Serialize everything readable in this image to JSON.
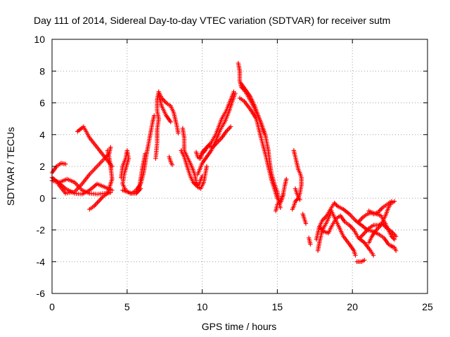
{
  "chart_data": {
    "type": "scatter",
    "title": "Day 111 of 2014, Sidereal Day-to-day VTEC variation (SDTVAR) for receiver sutm",
    "xlabel": "GPS time / hours",
    "ylabel": "SDTVAR / TECUs",
    "xlim": [
      0,
      25
    ],
    "ylim": [
      -6,
      10
    ],
    "x_ticks": [
      0,
      5,
      10,
      15,
      20,
      25
    ],
    "y_ticks": [
      -6,
      -4,
      -2,
      0,
      2,
      4,
      6,
      8,
      10
    ],
    "grid": true,
    "marker": "+",
    "color": "#ff0000",
    "tracks": [
      [
        [
          0.0,
          1.3
        ],
        [
          0.4,
          1.0
        ],
        [
          0.9,
          0.6
        ],
        [
          1.5,
          0.3
        ],
        [
          2.0,
          0.25
        ],
        [
          2.5,
          0.5
        ],
        [
          3.0,
          0.9
        ],
        [
          3.5,
          0.7
        ],
        [
          4.0,
          0.5
        ]
      ],
      [
        [
          0.0,
          1.6
        ],
        [
          0.3,
          2.0
        ],
        [
          0.6,
          2.2
        ],
        [
          0.9,
          2.15
        ]
      ],
      [
        [
          0.0,
          1.1
        ],
        [
          0.5,
          1.0
        ],
        [
          1.0,
          1.2
        ],
        [
          1.5,
          1.0
        ],
        [
          2.0,
          0.5
        ],
        [
          2.5,
          0.3
        ],
        [
          3.0,
          0.25
        ],
        [
          3.5,
          0.3
        ],
        [
          3.9,
          0.35
        ]
      ],
      [
        [
          0.4,
          0.9
        ],
        [
          0.9,
          0.3
        ],
        [
          1.5,
          0.4
        ],
        [
          2.0,
          0.9
        ],
        [
          2.5,
          1.5
        ],
        [
          3.0,
          2.0
        ],
        [
          3.5,
          2.5
        ],
        [
          3.8,
          2.8
        ],
        [
          3.9,
          3.2
        ]
      ],
      [
        [
          1.7,
          4.2
        ],
        [
          2.1,
          4.5
        ],
        [
          2.5,
          3.8
        ],
        [
          3.0,
          3.2
        ],
        [
          3.5,
          2.6
        ],
        [
          4.0,
          2.0
        ]
      ],
      [
        [
          2.5,
          -0.7
        ],
        [
          2.8,
          -0.5
        ],
        [
          3.1,
          -0.2
        ],
        [
          3.4,
          0.1
        ],
        [
          3.7,
          0.3
        ],
        [
          4.0,
          1.2
        ],
        [
          3.9,
          2.0
        ],
        [
          3.8,
          2.6
        ],
        [
          3.7,
          3.0
        ]
      ],
      [
        [
          4.6,
          1.3
        ],
        [
          4.7,
          2.0
        ],
        [
          4.9,
          2.5
        ],
        [
          5.0,
          3.0
        ],
        [
          5.1,
          2.5
        ],
        [
          4.8,
          1.5
        ],
        [
          4.7,
          0.9
        ],
        [
          4.9,
          0.5
        ],
        [
          5.2,
          0.3
        ],
        [
          5.6,
          0.3
        ],
        [
          5.9,
          0.6
        ]
      ],
      [
        [
          4.7,
          0.5
        ],
        [
          5.0,
          0.4
        ],
        [
          5.3,
          0.3
        ],
        [
          5.6,
          0.5
        ],
        [
          5.9,
          0.9
        ],
        [
          6.1,
          1.6
        ],
        [
          6.2,
          2.2
        ],
        [
          6.3,
          2.8
        ],
        [
          6.4,
          3.3
        ],
        [
          6.5,
          3.8
        ],
        [
          6.6,
          4.3
        ],
        [
          6.7,
          4.8
        ],
        [
          6.8,
          5.2
        ]
      ],
      [
        [
          5.6,
          0.3
        ],
        [
          5.8,
          0.5
        ],
        [
          5.9,
          1.2
        ],
        [
          6.0,
          1.8
        ],
        [
          6.1,
          2.3
        ],
        [
          6.2,
          2.8
        ]
      ],
      [
        [
          6.9,
          2.5
        ],
        [
          7.0,
          3.5
        ],
        [
          7.0,
          4.3
        ],
        [
          7.1,
          5.0
        ],
        [
          7.0,
          5.5
        ],
        [
          7.0,
          6.2
        ],
        [
          7.1,
          6.7
        ],
        [
          7.3,
          6.3
        ],
        [
          7.6,
          6.0
        ],
        [
          7.9,
          5.8
        ],
        [
          8.1,
          5.4
        ],
        [
          8.3,
          4.6
        ],
        [
          8.4,
          4.1
        ]
      ],
      [
        [
          7.1,
          6.5
        ],
        [
          7.3,
          5.8
        ],
        [
          7.6,
          5.2
        ],
        [
          7.9,
          4.8
        ]
      ],
      [
        [
          7.8,
          2.6
        ],
        [
          7.9,
          2.3
        ],
        [
          8.0,
          2.1
        ]
      ],
      [
        [
          8.7,
          4.4
        ],
        [
          8.8,
          3.8
        ],
        [
          8.8,
          3.0
        ],
        [
          9.0,
          2.6
        ],
        [
          9.3,
          2.0
        ],
        [
          9.5,
          1.5
        ],
        [
          9.6,
          1.0
        ],
        [
          9.7,
          0.7
        ],
        [
          9.9,
          0.6
        ],
        [
          10.1,
          1.0
        ],
        [
          10.2,
          1.5
        ],
        [
          10.3,
          2.0
        ]
      ],
      [
        [
          8.6,
          3.0
        ],
        [
          8.8,
          2.6
        ],
        [
          9.0,
          2.0
        ],
        [
          9.2,
          1.4
        ],
        [
          9.4,
          1.0
        ],
        [
          9.6,
          0.8
        ],
        [
          9.8,
          0.9
        ],
        [
          10.0,
          1.4
        ]
      ],
      [
        [
          9.6,
          2.9
        ],
        [
          9.7,
          2.6
        ],
        [
          9.9,
          2.5
        ],
        [
          10.0,
          2.8
        ],
        [
          10.2,
          3.0
        ],
        [
          10.4,
          3.3
        ],
        [
          10.7,
          3.2
        ],
        [
          11.0,
          3.5
        ],
        [
          11.3,
          3.8
        ],
        [
          11.6,
          4.2
        ],
        [
          11.9,
          4.5
        ]
      ],
      [
        [
          9.8,
          2.5
        ],
        [
          10.0,
          2.9
        ],
        [
          10.3,
          3.2
        ],
        [
          10.6,
          3.5
        ],
        [
          10.9,
          4.0
        ],
        [
          11.1,
          4.5
        ],
        [
          11.3,
          5.0
        ],
        [
          11.6,
          5.5
        ],
        [
          11.9,
          6.2
        ],
        [
          12.1,
          6.7
        ]
      ],
      [
        [
          9.7,
          1.5
        ],
        [
          10.0,
          2.2
        ],
        [
          10.3,
          2.6
        ],
        [
          10.6,
          3.0
        ],
        [
          10.9,
          3.6
        ],
        [
          11.2,
          4.3
        ],
        [
          11.5,
          4.8
        ],
        [
          11.8,
          5.5
        ],
        [
          12.0,
          6.1
        ],
        [
          12.2,
          6.6
        ]
      ],
      [
        [
          12.4,
          8.5
        ],
        [
          12.5,
          8.0
        ],
        [
          12.5,
          7.4
        ],
        [
          12.6,
          7.0
        ],
        [
          12.8,
          6.8
        ],
        [
          13.0,
          6.5
        ],
        [
          13.3,
          6.0
        ],
        [
          13.6,
          5.4
        ],
        [
          13.9,
          4.8
        ],
        [
          14.2,
          4.0
        ],
        [
          14.4,
          3.0
        ],
        [
          14.5,
          2.2
        ],
        [
          14.6,
          1.6
        ],
        [
          14.8,
          0.9
        ],
        [
          15.0,
          0.4
        ],
        [
          15.1,
          -0.2
        ],
        [
          15.2,
          -0.6
        ]
      ],
      [
        [
          12.5,
          6.3
        ],
        [
          12.8,
          6.1
        ],
        [
          13.2,
          5.6
        ],
        [
          13.6,
          5.0
        ],
        [
          14.0,
          3.5
        ],
        [
          14.2,
          2.8
        ],
        [
          14.4,
          2.0
        ],
        [
          14.6,
          1.2
        ],
        [
          14.8,
          0.6
        ],
        [
          15.0,
          0.0
        ],
        [
          15.2,
          -0.3
        ],
        [
          15.3,
          -0.1
        ],
        [
          15.4,
          0.3
        ],
        [
          15.5,
          0.8
        ],
        [
          15.6,
          1.2
        ]
      ],
      [
        [
          12.6,
          7.2
        ],
        [
          12.9,
          6.8
        ],
        [
          13.2,
          6.4
        ],
        [
          13.5,
          5.8
        ],
        [
          13.8,
          5.0
        ],
        [
          14.1,
          4.1
        ]
      ],
      [
        [
          14.9,
          -0.8
        ],
        [
          15.0,
          -0.4
        ],
        [
          15.2,
          -0.1
        ],
        [
          15.4,
          0.2
        ]
      ],
      [
        [
          16.1,
          3.0
        ],
        [
          16.2,
          2.6
        ],
        [
          16.3,
          2.2
        ],
        [
          16.4,
          1.8
        ],
        [
          16.5,
          1.6
        ],
        [
          16.6,
          1.3
        ],
        [
          16.6,
          0.8
        ],
        [
          16.5,
          0.3
        ],
        [
          16.4,
          0.0
        ],
        [
          16.2,
          -0.2
        ],
        [
          16.1,
          -0.5
        ],
        [
          16.0,
          -0.7
        ]
      ],
      [
        [
          16.2,
          0.6
        ],
        [
          16.3,
          0.3
        ],
        [
          16.4,
          0.1
        ],
        [
          16.5,
          -0.1
        ]
      ],
      [
        [
          16.7,
          -1.0
        ],
        [
          16.8,
          -1.3
        ],
        [
          16.9,
          -1.6
        ]
      ],
      [
        [
          17.1,
          -2.5
        ],
        [
          17.2,
          -2.9
        ]
      ],
      [
        [
          17.6,
          -2.6
        ],
        [
          17.8,
          -1.8
        ],
        [
          18.0,
          -1.4
        ],
        [
          18.3,
          -1.1
        ],
        [
          18.6,
          -0.6
        ],
        [
          18.8,
          -0.3
        ],
        [
          19.0,
          -0.5
        ],
        [
          19.4,
          -0.7
        ],
        [
          19.8,
          -1.0
        ],
        [
          20.2,
          -1.4
        ],
        [
          20.6,
          -1.7
        ],
        [
          21.0,
          -2.0
        ],
        [
          21.4,
          -2.1
        ],
        [
          21.8,
          -2.3
        ],
        [
          22.1,
          -2.5
        ],
        [
          22.4,
          -2.9
        ],
        [
          22.7,
          -3.1
        ]
      ],
      [
        [
          17.8,
          -1.8
        ],
        [
          18.1,
          -2.1
        ],
        [
          18.4,
          -2.2
        ],
        [
          18.6,
          -1.8
        ],
        [
          18.9,
          -1.3
        ],
        [
          19.2,
          -1.1
        ],
        [
          19.5,
          -1.5
        ],
        [
          19.8,
          -1.7
        ],
        [
          20.1,
          -2.0
        ],
        [
          20.4,
          -2.5
        ],
        [
          20.8,
          -2.8
        ],
        [
          21.2,
          -3.3
        ],
        [
          21.4,
          -3.6
        ]
      ],
      [
        [
          17.7,
          -3.3
        ],
        [
          17.8,
          -2.8
        ],
        [
          18.0,
          -2.0
        ],
        [
          18.3,
          -1.5
        ],
        [
          18.6,
          -0.8
        ],
        [
          18.8,
          -1.2
        ],
        [
          19.1,
          -1.8
        ],
        [
          19.4,
          -2.4
        ],
        [
          19.8,
          -2.9
        ],
        [
          20.1,
          -3.3
        ],
        [
          20.2,
          -3.6
        ]
      ],
      [
        [
          20.3,
          -4.0
        ],
        [
          20.6,
          -4.0
        ],
        [
          20.8,
          -3.9
        ]
      ],
      [
        [
          20.4,
          -1.5
        ],
        [
          20.7,
          -1.2
        ],
        [
          21.0,
          -1.0
        ],
        [
          21.3,
          -0.9
        ],
        [
          21.6,
          -1.0
        ],
        [
          21.9,
          -1.1
        ],
        [
          22.2,
          -1.6
        ],
        [
          22.4,
          -2.0
        ],
        [
          22.6,
          -2.4
        ],
        [
          22.8,
          -2.6
        ]
      ],
      [
        [
          20.5,
          -2.5
        ],
        [
          20.8,
          -2.2
        ],
        [
          21.1,
          -1.9
        ],
        [
          21.4,
          -1.7
        ],
        [
          21.7,
          -1.7
        ],
        [
          22.0,
          -1.6
        ],
        [
          22.3,
          -1.9
        ],
        [
          22.6,
          -2.1
        ],
        [
          22.9,
          -2.4
        ]
      ],
      [
        [
          21.1,
          -2.8
        ],
        [
          21.3,
          -2.4
        ],
        [
          21.6,
          -2.0
        ],
        [
          21.9,
          -1.7
        ],
        [
          22.2,
          -1.1
        ],
        [
          22.4,
          -0.6
        ],
        [
          22.6,
          -0.3
        ],
        [
          22.8,
          -0.2
        ]
      ],
      [
        [
          22.6,
          -3.0
        ],
        [
          22.8,
          -3.1
        ],
        [
          22.9,
          -3.3
        ]
      ],
      [
        [
          21.1,
          -0.8
        ],
        [
          21.4,
          -1.0
        ],
        [
          21.7,
          -0.9
        ],
        [
          22.0,
          -0.6
        ],
        [
          22.3,
          -0.4
        ],
        [
          22.6,
          -0.2
        ]
      ]
    ]
  }
}
